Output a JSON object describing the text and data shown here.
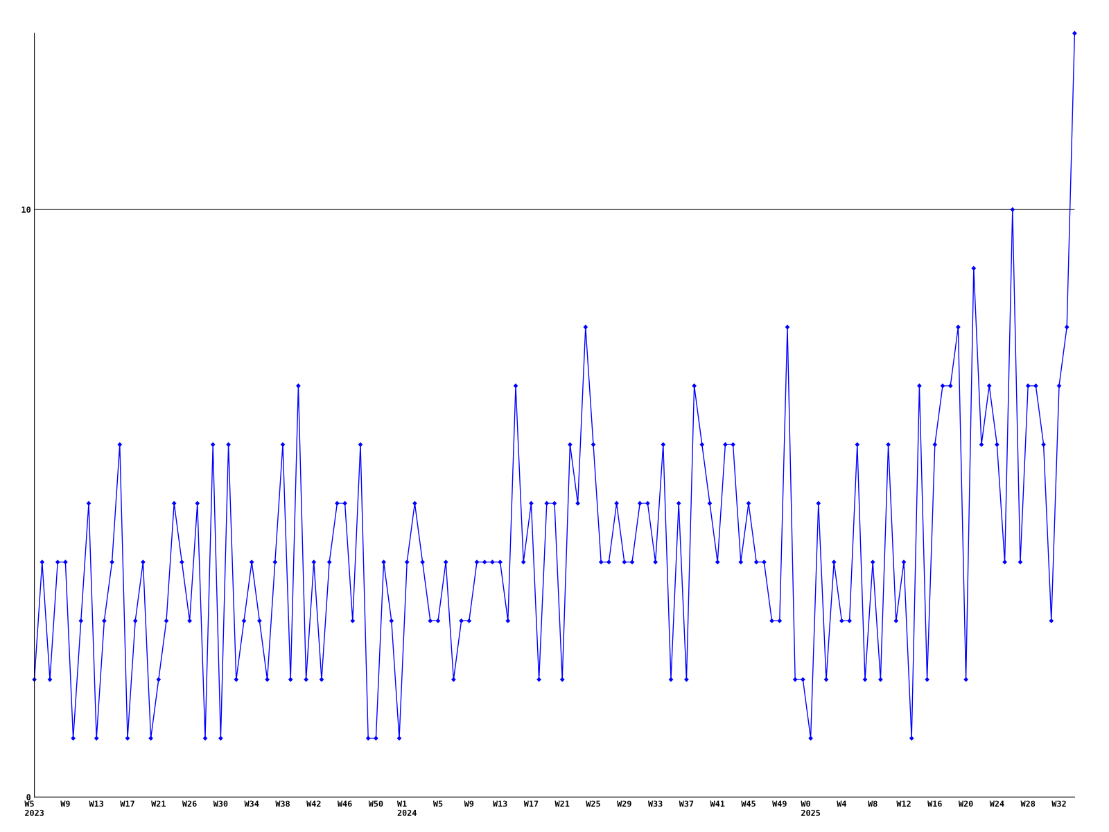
{
  "chart_data": {
    "type": "line",
    "categories": [
      "W5\n2023",
      null,
      null,
      null,
      "W9",
      null,
      null,
      null,
      "W13",
      null,
      null,
      null,
      "W17",
      null,
      null,
      null,
      "W21",
      null,
      null,
      null,
      "W26",
      null,
      null,
      null,
      "W30",
      null,
      null,
      null,
      "W34",
      null,
      null,
      null,
      "W38",
      null,
      null,
      null,
      "W42",
      null,
      null,
      null,
      "W46",
      null,
      null,
      null,
      "W50",
      null,
      null,
      null,
      "W1\n2024",
      null,
      null,
      null,
      "W5",
      null,
      null,
      null,
      "W9",
      null,
      null,
      null,
      "W13",
      null,
      null,
      null,
      "W17",
      null,
      null,
      null,
      "W21",
      null,
      null,
      null,
      "W25",
      null,
      null,
      null,
      "W29",
      null,
      null,
      null,
      "W33",
      null,
      null,
      null,
      "W37",
      null,
      null,
      null,
      "W41",
      null,
      null,
      null,
      "W45",
      null,
      null,
      null,
      "W49",
      null,
      null,
      null,
      "W0\n2025",
      null,
      null,
      null,
      "W4",
      null,
      null,
      null,
      "W8",
      null,
      null,
      null,
      "W12",
      null,
      null,
      null,
      "W16",
      null,
      null,
      null,
      "W20",
      null,
      null,
      null,
      "W24",
      null,
      null,
      null,
      "W28",
      null,
      null,
      null,
      "W32",
      null,
      null
    ],
    "series": [
      {
        "color": "#0000ff",
        "values": [
          2,
          4,
          2,
          4,
          4,
          1,
          3,
          5,
          1,
          3,
          4,
          6,
          1,
          3,
          4,
          1,
          2,
          3,
          5,
          4,
          3,
          5,
          1,
          6,
          1,
          6,
          2,
          3,
          4,
          3,
          2,
          4,
          6,
          2,
          7,
          2,
          4,
          2,
          4,
          5,
          5,
          3,
          6,
          1,
          1,
          4,
          3,
          1,
          4,
          5,
          4,
          3,
          3,
          4,
          2,
          3,
          3,
          4,
          4,
          4,
          4,
          3,
          7,
          4,
          5,
          2,
          5,
          5,
          2,
          6,
          5,
          8,
          6,
          4,
          4,
          5,
          4,
          4,
          5,
          5,
          4,
          6,
          2,
          5,
          2,
          7,
          6,
          5,
          4,
          6,
          6,
          4,
          5,
          4,
          4,
          3,
          3,
          8,
          2,
          2,
          1,
          5,
          2,
          4,
          3,
          3,
          6,
          2,
          4,
          2,
          6,
          3,
          4,
          1,
          7,
          2,
          6,
          7,
          7,
          8,
          2,
          9,
          6,
          7,
          6,
          4,
          10,
          4,
          7,
          7,
          6,
          3,
          7,
          8,
          13
        ]
      }
    ],
    "ylim": [
      0,
      13
    ],
    "yticks": [
      0,
      10
    ],
    "grid": "y",
    "marker": "diamond",
    "line_style": "solid"
  }
}
